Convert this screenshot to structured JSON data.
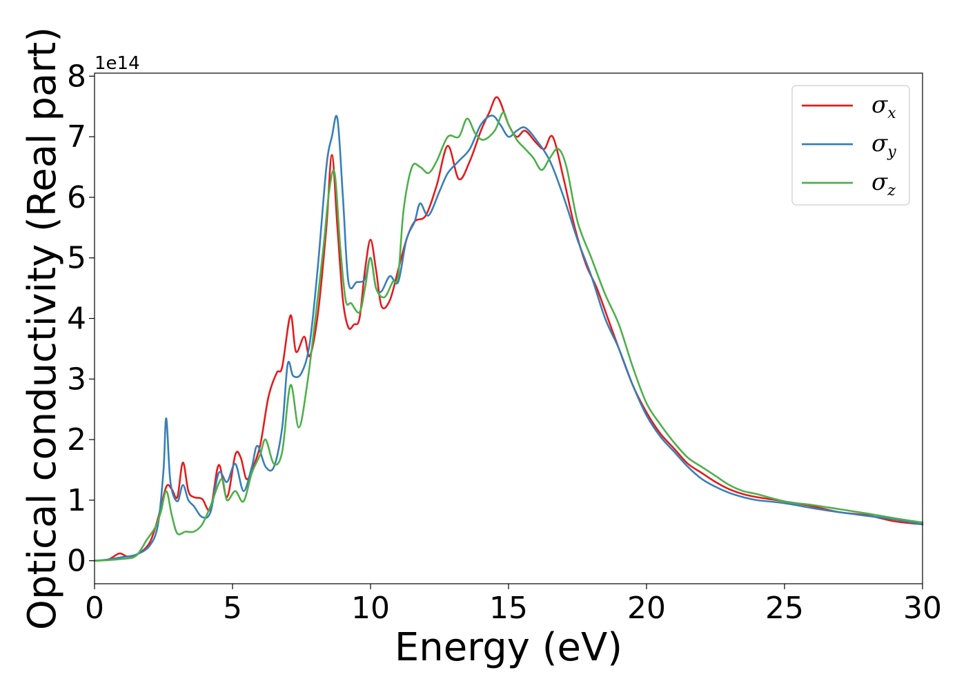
{
  "chart_data": {
    "type": "line",
    "xlabel": "Energy (eV)",
    "ylabel": "Optical conductivity (Real part)",
    "y_offset_text": "1e14",
    "xlim": [
      0,
      30
    ],
    "ylim": [
      -0.38,
      8.05
    ],
    "xticks": [
      0,
      5,
      10,
      15,
      20,
      25,
      30
    ],
    "xtick_labels": [
      "0",
      "5",
      "10",
      "15",
      "20",
      "25",
      "30"
    ],
    "yticks": [
      0,
      1,
      2,
      3,
      4,
      5,
      6,
      7,
      8
    ],
    "ytick_labels": [
      "0",
      "1",
      "2",
      "3",
      "4",
      "5",
      "6",
      "7",
      "8"
    ],
    "grid": false,
    "legend_position": "top-right",
    "series": [
      {
        "name": "σx",
        "symbol": "σ",
        "subscript": "x",
        "color": "#e41a1c",
        "points": [
          [
            0,
            0
          ],
          [
            0.5,
            0.02
          ],
          [
            0.9,
            0.12
          ],
          [
            1.2,
            0.07
          ],
          [
            1.6,
            0.12
          ],
          [
            2.0,
            0.3
          ],
          [
            2.3,
            0.7
          ],
          [
            2.6,
            1.22
          ],
          [
            2.8,
            1.18
          ],
          [
            3.0,
            1.05
          ],
          [
            3.2,
            1.62
          ],
          [
            3.4,
            1.15
          ],
          [
            3.6,
            1.05
          ],
          [
            3.9,
            1.02
          ],
          [
            4.2,
            0.85
          ],
          [
            4.5,
            1.58
          ],
          [
            4.8,
            1.05
          ],
          [
            5.1,
            1.75
          ],
          [
            5.3,
            1.7
          ],
          [
            5.5,
            1.35
          ],
          [
            5.7,
            1.5
          ],
          [
            6.0,
            1.9
          ],
          [
            6.3,
            2.7
          ],
          [
            6.6,
            3.1
          ],
          [
            6.8,
            3.2
          ],
          [
            7.1,
            4.05
          ],
          [
            7.3,
            3.45
          ],
          [
            7.6,
            3.7
          ],
          [
            7.8,
            3.38
          ],
          [
            8.1,
            4.1
          ],
          [
            8.4,
            5.5
          ],
          [
            8.6,
            6.7
          ],
          [
            8.8,
            5.5
          ],
          [
            9.0,
            4.3
          ],
          [
            9.2,
            3.85
          ],
          [
            9.4,
            3.9
          ],
          [
            9.6,
            4.0
          ],
          [
            9.8,
            4.8
          ],
          [
            10.0,
            5.3
          ],
          [
            10.2,
            4.8
          ],
          [
            10.4,
            4.2
          ],
          [
            10.7,
            4.3
          ],
          [
            11.0,
            4.8
          ],
          [
            11.3,
            5.3
          ],
          [
            11.6,
            5.6
          ],
          [
            12.0,
            5.7
          ],
          [
            12.4,
            6.2
          ],
          [
            12.8,
            6.85
          ],
          [
            13.2,
            6.3
          ],
          [
            13.6,
            6.6
          ],
          [
            14.0,
            7.1
          ],
          [
            14.3,
            7.4
          ],
          [
            14.6,
            7.65
          ],
          [
            15.0,
            7.2
          ],
          [
            15.3,
            7.0
          ],
          [
            15.6,
            7.1
          ],
          [
            16.0,
            6.9
          ],
          [
            16.3,
            6.8
          ],
          [
            16.6,
            7.0
          ],
          [
            17.0,
            6.3
          ],
          [
            17.4,
            5.5
          ],
          [
            17.8,
            4.9
          ],
          [
            18.2,
            4.5
          ],
          [
            18.6,
            4.0
          ],
          [
            19.0,
            3.5
          ],
          [
            19.5,
            2.9
          ],
          [
            20.0,
            2.45
          ],
          [
            20.5,
            2.1
          ],
          [
            21.0,
            1.85
          ],
          [
            21.5,
            1.6
          ],
          [
            22.0,
            1.45
          ],
          [
            22.5,
            1.3
          ],
          [
            23.0,
            1.18
          ],
          [
            23.5,
            1.1
          ],
          [
            24.0,
            1.05
          ],
          [
            25.0,
            0.98
          ],
          [
            26.0,
            0.9
          ],
          [
            27.0,
            0.8
          ],
          [
            28.0,
            0.75
          ],
          [
            29.0,
            0.65
          ],
          [
            30.0,
            0.6
          ]
        ]
      },
      {
        "name": "σy",
        "symbol": "σ",
        "subscript": "y",
        "color": "#377eb8",
        "points": [
          [
            0,
            0
          ],
          [
            0.5,
            0.02
          ],
          [
            1.0,
            0.06
          ],
          [
            1.5,
            0.1
          ],
          [
            2.0,
            0.25
          ],
          [
            2.3,
            0.6
          ],
          [
            2.5,
            1.5
          ],
          [
            2.6,
            2.35
          ],
          [
            2.75,
            1.3
          ],
          [
            3.0,
            0.98
          ],
          [
            3.2,
            1.25
          ],
          [
            3.4,
            1.0
          ],
          [
            3.6,
            0.9
          ],
          [
            3.9,
            0.72
          ],
          [
            4.2,
            0.8
          ],
          [
            4.5,
            1.45
          ],
          [
            4.8,
            1.3
          ],
          [
            5.1,
            1.6
          ],
          [
            5.4,
            1.15
          ],
          [
            5.7,
            1.55
          ],
          [
            5.9,
            1.9
          ],
          [
            6.2,
            1.55
          ],
          [
            6.5,
            1.55
          ],
          [
            6.8,
            2.2
          ],
          [
            7.0,
            3.25
          ],
          [
            7.2,
            3.05
          ],
          [
            7.5,
            3.1
          ],
          [
            7.8,
            3.6
          ],
          [
            8.1,
            4.9
          ],
          [
            8.4,
            6.5
          ],
          [
            8.6,
            7.0
          ],
          [
            8.8,
            7.3
          ],
          [
            9.0,
            6.0
          ],
          [
            9.2,
            4.6
          ],
          [
            9.5,
            4.6
          ],
          [
            9.8,
            4.65
          ],
          [
            10.0,
            5.0
          ],
          [
            10.2,
            4.5
          ],
          [
            10.4,
            4.45
          ],
          [
            10.7,
            4.7
          ],
          [
            11.0,
            4.6
          ],
          [
            11.3,
            5.3
          ],
          [
            11.6,
            5.6
          ],
          [
            11.8,
            5.9
          ],
          [
            12.1,
            5.7
          ],
          [
            12.5,
            6.1
          ],
          [
            12.8,
            6.4
          ],
          [
            13.2,
            6.6
          ],
          [
            13.6,
            6.8
          ],
          [
            14.0,
            7.2
          ],
          [
            14.4,
            7.35
          ],
          [
            14.7,
            7.2
          ],
          [
            15.0,
            7.0
          ],
          [
            15.3,
            7.1
          ],
          [
            15.6,
            7.15
          ],
          [
            16.0,
            6.95
          ],
          [
            16.5,
            6.6
          ],
          [
            17.0,
            6.0
          ],
          [
            17.5,
            5.3
          ],
          [
            18.0,
            4.7
          ],
          [
            18.5,
            4.0
          ],
          [
            19.0,
            3.5
          ],
          [
            19.5,
            2.9
          ],
          [
            20.0,
            2.4
          ],
          [
            20.5,
            2.05
          ],
          [
            21.0,
            1.8
          ],
          [
            21.5,
            1.55
          ],
          [
            22.0,
            1.35
          ],
          [
            22.5,
            1.22
          ],
          [
            23.0,
            1.12
          ],
          [
            23.5,
            1.05
          ],
          [
            24.0,
            1.0
          ],
          [
            25.0,
            0.95
          ],
          [
            26.0,
            0.87
          ],
          [
            27.0,
            0.8
          ],
          [
            28.0,
            0.74
          ],
          [
            29.0,
            0.68
          ],
          [
            30.0,
            0.6
          ]
        ]
      },
      {
        "name": "σz",
        "symbol": "σ",
        "subscript": "z",
        "color": "#4daf4a",
        "points": [
          [
            0,
            0
          ],
          [
            0.5,
            0.01
          ],
          [
            1.0,
            0.03
          ],
          [
            1.5,
            0.08
          ],
          [
            1.9,
            0.35
          ],
          [
            2.2,
            0.55
          ],
          [
            2.4,
            0.8
          ],
          [
            2.6,
            1.15
          ],
          [
            2.8,
            0.75
          ],
          [
            3.0,
            0.45
          ],
          [
            3.3,
            0.48
          ],
          [
            3.6,
            0.48
          ],
          [
            3.9,
            0.6
          ],
          [
            4.2,
            0.9
          ],
          [
            4.6,
            1.35
          ],
          [
            4.8,
            1.0
          ],
          [
            5.1,
            1.15
          ],
          [
            5.4,
            0.98
          ],
          [
            5.7,
            1.45
          ],
          [
            6.0,
            1.75
          ],
          [
            6.2,
            2.0
          ],
          [
            6.5,
            1.6
          ],
          [
            6.8,
            1.8
          ],
          [
            7.1,
            2.9
          ],
          [
            7.4,
            2.2
          ],
          [
            7.7,
            2.9
          ],
          [
            8.0,
            4.0
          ],
          [
            8.3,
            5.2
          ],
          [
            8.5,
            6.1
          ],
          [
            8.7,
            6.4
          ],
          [
            8.9,
            5.2
          ],
          [
            9.1,
            4.3
          ],
          [
            9.3,
            4.25
          ],
          [
            9.6,
            4.1
          ],
          [
            9.8,
            4.5
          ],
          [
            10.0,
            5.0
          ],
          [
            10.2,
            4.5
          ],
          [
            10.5,
            4.35
          ],
          [
            10.8,
            4.6
          ],
          [
            11.0,
            4.7
          ],
          [
            11.2,
            5.8
          ],
          [
            11.5,
            6.5
          ],
          [
            11.8,
            6.5
          ],
          [
            12.1,
            6.4
          ],
          [
            12.4,
            6.6
          ],
          [
            12.8,
            7.0
          ],
          [
            13.2,
            7.0
          ],
          [
            13.5,
            7.3
          ],
          [
            13.8,
            7.05
          ],
          [
            14.1,
            6.95
          ],
          [
            14.5,
            7.1
          ],
          [
            14.8,
            7.4
          ],
          [
            15.0,
            7.2
          ],
          [
            15.3,
            6.95
          ],
          [
            15.6,
            6.8
          ],
          [
            15.9,
            6.65
          ],
          [
            16.2,
            6.45
          ],
          [
            16.5,
            6.65
          ],
          [
            16.8,
            6.8
          ],
          [
            17.1,
            6.5
          ],
          [
            17.5,
            5.6
          ],
          [
            18.0,
            5.0
          ],
          [
            18.5,
            4.4
          ],
          [
            19.0,
            3.9
          ],
          [
            19.5,
            3.2
          ],
          [
            20.0,
            2.6
          ],
          [
            20.5,
            2.25
          ],
          [
            21.0,
            1.95
          ],
          [
            21.5,
            1.7
          ],
          [
            22.0,
            1.55
          ],
          [
            22.5,
            1.4
          ],
          [
            23.0,
            1.25
          ],
          [
            23.5,
            1.15
          ],
          [
            24.0,
            1.1
          ],
          [
            25.0,
            0.98
          ],
          [
            26.0,
            0.92
          ],
          [
            27.0,
            0.85
          ],
          [
            28.0,
            0.78
          ],
          [
            29.0,
            0.7
          ],
          [
            30.0,
            0.63
          ]
        ]
      }
    ]
  }
}
